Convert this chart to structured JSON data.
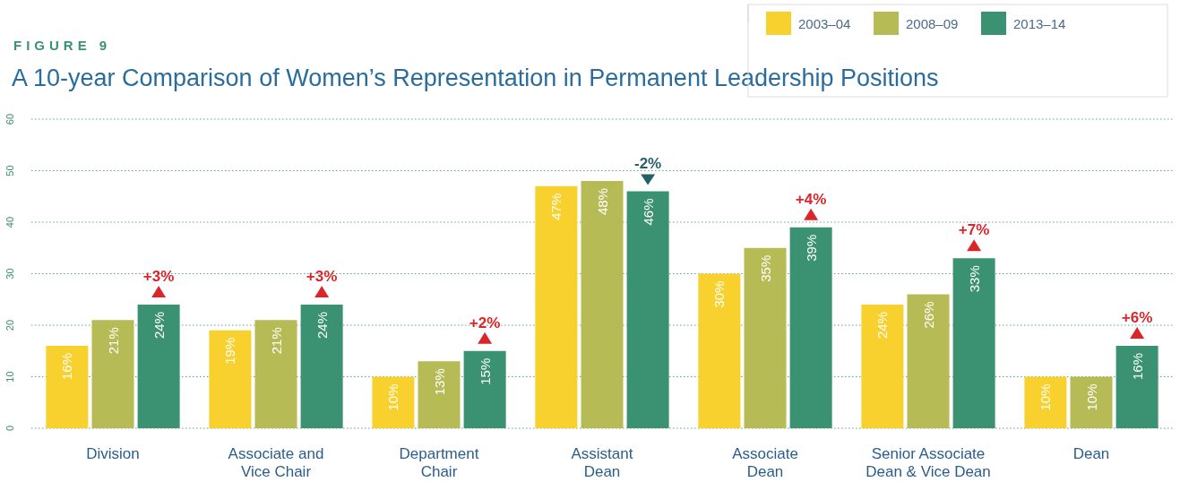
{
  "chart_data": {
    "type": "bar",
    "subtitle": "FIGURE 9",
    "title": "A 10-year Comparison of Women’s Representation in Permanent Leadership Positions",
    "categories": [
      "Division",
      "Associate and\nVice Chair",
      "Department\nChair",
      "Assistant\nDean",
      "Associate\nDean",
      "Senior Associate\nDean & Vice Dean",
      "Dean"
    ],
    "series": [
      {
        "name": "2003–04",
        "color": "#f9d12e",
        "values": [
          16,
          19,
          10,
          47,
          30,
          24,
          10
        ],
        "value_labels": [
          "16%",
          "19%",
          "10%",
          "47%",
          "30%",
          "24%",
          "10%"
        ]
      },
      {
        "name": "2008–09",
        "color": "#b7bb56",
        "values": [
          21,
          21,
          13,
          48,
          35,
          26,
          10
        ],
        "value_labels": [
          "21%",
          "21%",
          "13%",
          "48%",
          "35%",
          "26%",
          "10%"
        ]
      },
      {
        "name": "2013–14",
        "color": "#3b9272",
        "values": [
          24,
          24,
          15,
          46,
          39,
          33,
          16
        ],
        "value_labels": [
          "24%",
          "24%",
          "15%",
          "46%",
          "39%",
          "33%",
          "16%"
        ]
      }
    ],
    "ylim": [
      0,
      60
    ],
    "yticks": [
      0,
      10,
      20,
      30,
      40,
      50,
      60
    ],
    "grid": "y",
    "legend": "top right",
    "annotations": [
      "+3%",
      "+3%",
      "+2%",
      "-2%",
      "+4%",
      "+7%",
      "+6%"
    ]
  }
}
